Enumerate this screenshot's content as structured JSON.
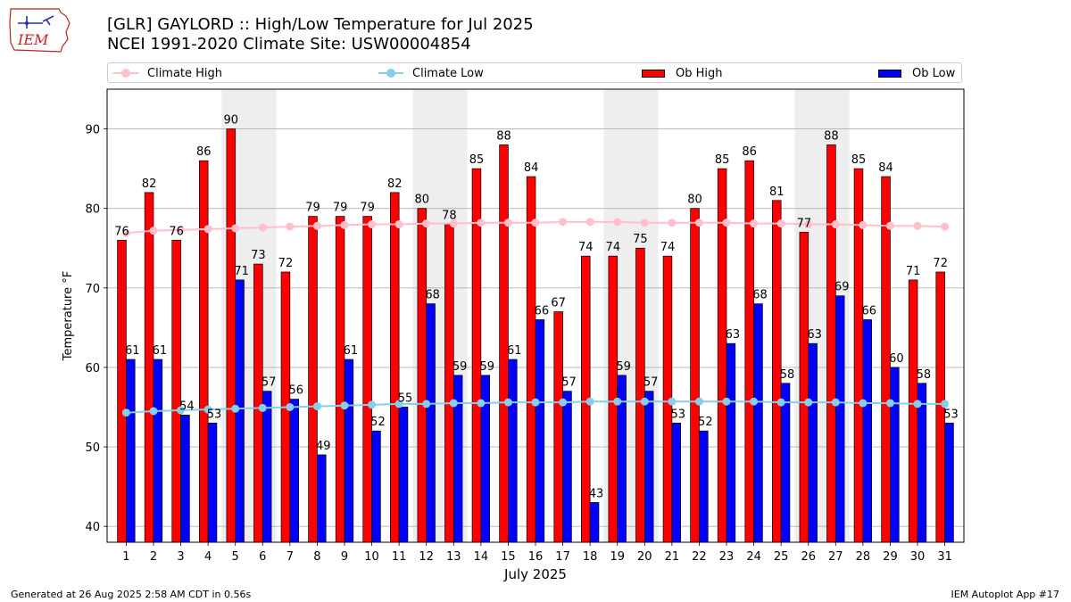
{
  "header": {
    "logo_text": "IEM",
    "title_line1": "[GLR] GAYLORD :: High/Low Temperature for Jul 2025",
    "title_line2": "NCEI 1991-2020 Climate Site: USW00004854"
  },
  "legend": {
    "climate_high": "Climate High",
    "climate_low": "Climate Low",
    "ob_high": "Ob High",
    "ob_low": "Ob Low"
  },
  "colors": {
    "ob_high": "#ff0000",
    "ob_low": "#0000ff",
    "climate_high": "#ffc0cb",
    "climate_low": "#87ceeb",
    "weekend_band": "#eeeeee"
  },
  "footer": {
    "generated": "Generated at 26 Aug 2025 2:58 AM CDT in 0.56s",
    "app": "IEM Autoplot App #17"
  },
  "chart_data": {
    "type": "bar",
    "xlabel": "July 2025",
    "ylabel": "Temperature °F",
    "ylim": [
      38,
      95
    ],
    "yticks": [
      40,
      50,
      60,
      70,
      80,
      90
    ],
    "grid": "horizontal",
    "legend_position": "top",
    "categories": [
      1,
      2,
      3,
      4,
      5,
      6,
      7,
      8,
      9,
      10,
      11,
      12,
      13,
      14,
      15,
      16,
      17,
      18,
      19,
      20,
      21,
      22,
      23,
      24,
      25,
      26,
      27,
      28,
      29,
      30,
      31
    ],
    "shaded_days": [
      [
        5,
        6
      ],
      [
        12,
        13
      ],
      [
        19,
        20
      ],
      [
        26,
        27
      ]
    ],
    "series": [
      {
        "name": "Ob High",
        "kind": "bar",
        "values": [
          76,
          82,
          76,
          86,
          90,
          73,
          72,
          79,
          79,
          79,
          82,
          80,
          78,
          85,
          88,
          84,
          67,
          74,
          74,
          75,
          74,
          80,
          85,
          86,
          81,
          77,
          88,
          85,
          84,
          71,
          72
        ]
      },
      {
        "name": "Ob Low",
        "kind": "bar",
        "values": [
          61,
          61,
          54,
          53,
          71,
          57,
          56,
          49,
          61,
          52,
          55,
          68,
          59,
          59,
          61,
          66,
          57,
          43,
          59,
          57,
          53,
          52,
          63,
          68,
          58,
          63,
          69,
          66,
          60,
          58,
          53
        ]
      },
      {
        "name": "Climate High",
        "kind": "line",
        "values": [
          76.9,
          77.2,
          77.3,
          77.4,
          77.5,
          77.6,
          77.7,
          77.8,
          77.9,
          78.0,
          78.0,
          78.1,
          78.1,
          78.2,
          78.2,
          78.2,
          78.3,
          78.3,
          78.3,
          78.2,
          78.2,
          78.2,
          78.2,
          78.1,
          78.1,
          78.0,
          78.0,
          77.9,
          77.8,
          77.8,
          77.7
        ]
      },
      {
        "name": "Climate Low",
        "kind": "line",
        "values": [
          54.3,
          54.5,
          54.6,
          54.7,
          54.8,
          54.9,
          55.0,
          55.1,
          55.2,
          55.3,
          55.4,
          55.4,
          55.5,
          55.5,
          55.6,
          55.6,
          55.6,
          55.7,
          55.7,
          55.7,
          55.7,
          55.7,
          55.7,
          55.7,
          55.6,
          55.6,
          55.6,
          55.5,
          55.5,
          55.4,
          55.4
        ]
      }
    ]
  }
}
